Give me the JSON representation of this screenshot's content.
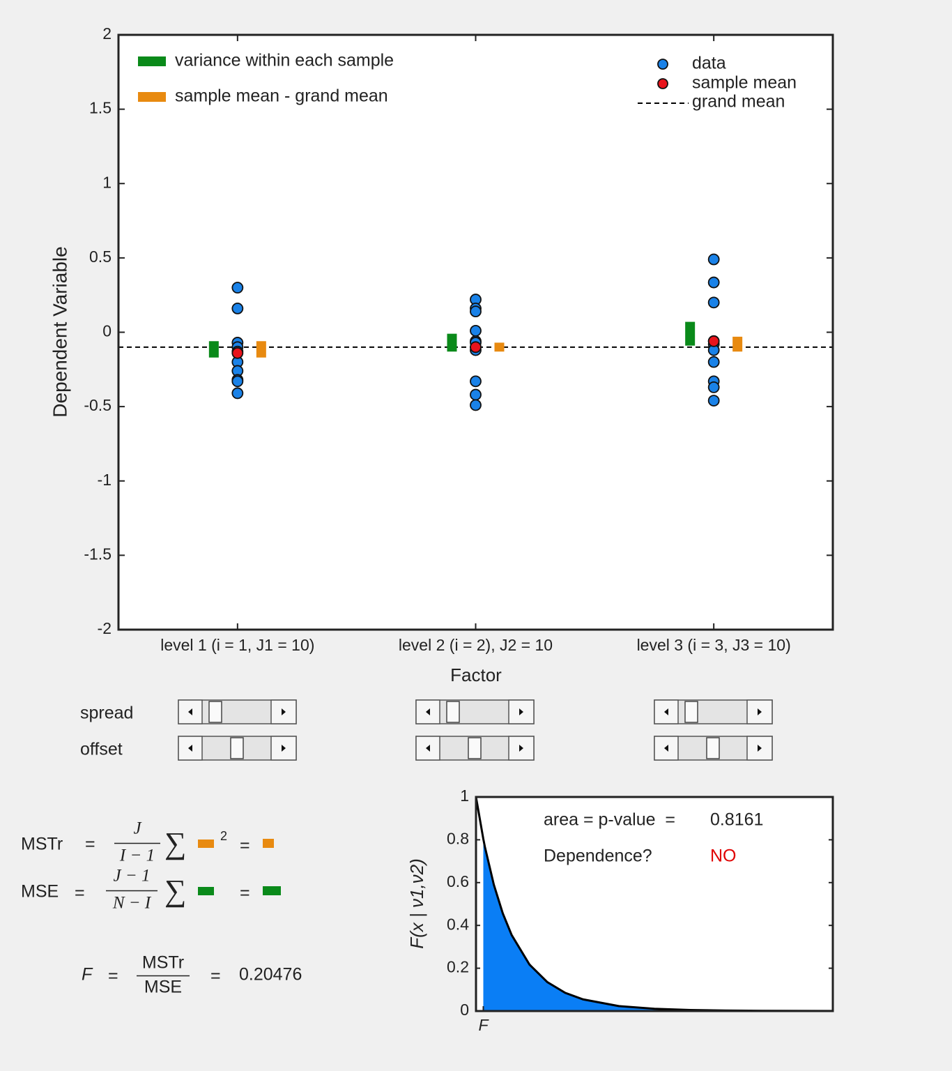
{
  "chart_data": [
    {
      "type": "scatter",
      "ylabel": "Dependent Variable",
      "xlabel": "Factor",
      "categories": [
        "level 1 (i = 1, J1 = 10)",
        "level 2 (i = 2), J2 = 10",
        "level 3 (i = 3, J3 = 10)"
      ],
      "ylim": [
        -2,
        2
      ],
      "yticks": [
        -2,
        -1.5,
        -1,
        -0.5,
        0,
        0.5,
        1,
        1.5,
        2
      ],
      "series": [
        {
          "name": "data",
          "color": "#1a82e8",
          "values": [
            [
              0.3,
              0.16,
              -0.07,
              -0.1,
              -0.13,
              -0.2,
              -0.26,
              -0.32,
              -0.33,
              -0.41
            ],
            [
              0.22,
              0.16,
              0.14,
              0.01,
              -0.06,
              -0.07,
              -0.12,
              -0.33,
              -0.42,
              -0.49
            ],
            [
              0.49,
              0.335,
              0.2,
              -0.06,
              -0.08,
              -0.12,
              -0.2,
              -0.33,
              -0.37,
              -0.46
            ]
          ]
        },
        {
          "name": "sample mean",
          "color": "#e8141c",
          "values": [
            -0.14,
            -0.1,
            -0.06
          ]
        },
        {
          "name": "grand mean",
          "color": "#000000",
          "value": -0.1
        }
      ],
      "bars": [
        {
          "name": "variance within each sample",
          "color": "#0a8a1a",
          "low": [
            -0.17,
            -0.13,
            -0.09
          ],
          "high": [
            -0.06,
            -0.01,
            0.07
          ]
        },
        {
          "name": "sample mean - grand mean",
          "color": "#e88a10",
          "low": [
            -0.17,
            -0.13,
            -0.13
          ],
          "high": [
            -0.06,
            -0.07,
            -0.03
          ]
        }
      ]
    },
    {
      "type": "area",
      "ylabel": "F(x | ν1,ν2)",
      "xlim": [
        0,
        10
      ],
      "ylim": [
        0,
        1
      ],
      "yticks": [
        0,
        0.2,
        0.4,
        0.6,
        0.8,
        1
      ],
      "xticks": [
        {
          "value": 0.20476,
          "label": "F"
        }
      ],
      "x": [
        0,
        0.20476,
        0.25,
        0.5,
        0.75,
        1,
        1.5,
        2,
        2.5,
        3,
        4,
        5,
        6,
        7,
        8,
        10
      ],
      "values": [
        1,
        0.804,
        0.7664,
        0.5902,
        0.4566,
        0.3548,
        0.217,
        0.1349,
        0.0851,
        0.0545,
        0.0232,
        0.0104,
        0.00484,
        0.00234,
        0.00117,
        0.00032
      ],
      "color": "#0a7ef5",
      "annotations": [
        {
          "text": "area = p-value  =",
          "value": 0.8161
        },
        {
          "text": "Dependence?",
          "answer": "NO",
          "answer_color": "#e00000"
        }
      ]
    }
  ],
  "sliders": {
    "labels": [
      "spread",
      "offset"
    ]
  },
  "formulas": {
    "equals": "=",
    "sum": "∑",
    "mstr": {
      "label": "MSTr",
      "num": "J",
      "den": "I − 1",
      "power": "2"
    },
    "mse": {
      "label": "MSE",
      "num": "J − 1",
      "den": "N − I"
    },
    "f": {
      "label": "F",
      "num": "MSTr",
      "den": "MSE",
      "value": 0.20476
    }
  }
}
